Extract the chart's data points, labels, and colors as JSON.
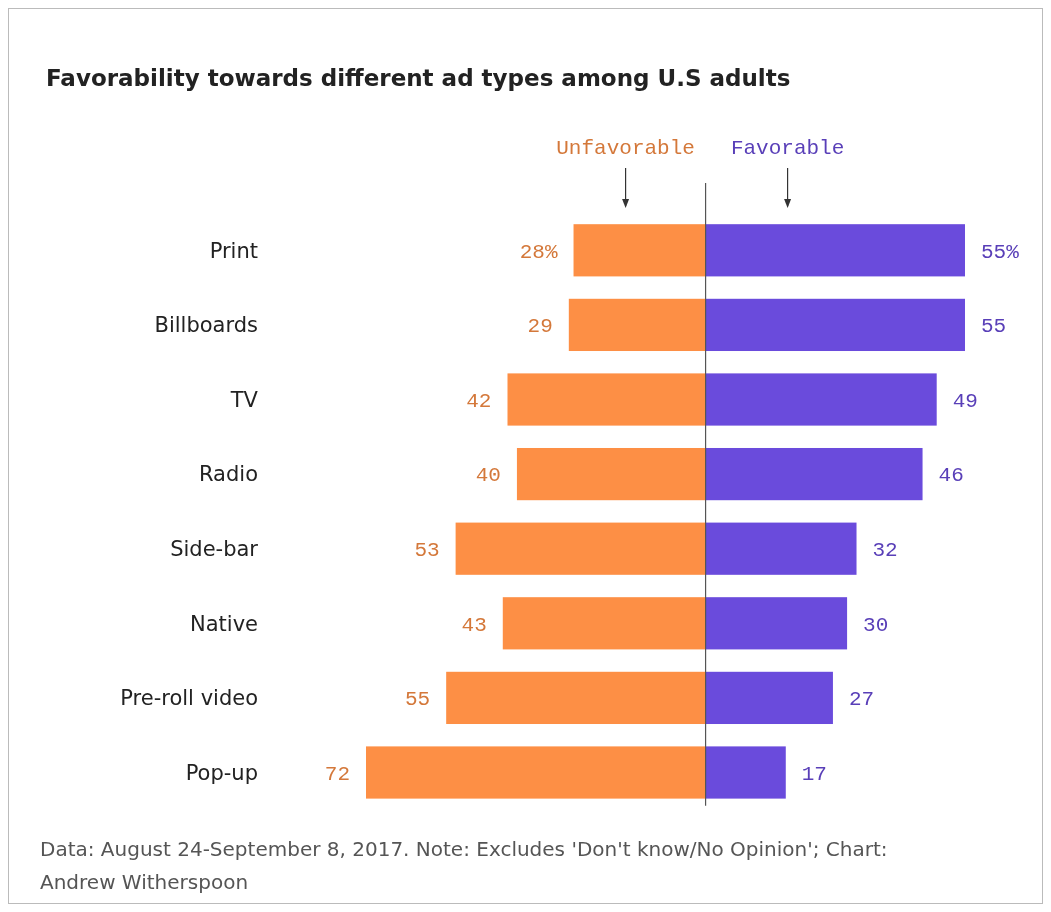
{
  "chart_data": [
    {
      "type": "bar",
      "orientation": "horizontal",
      "title": "Favorability towards different ad types among U.S adults",
      "xlim": [
        72,
        0
      ],
      "tick_labels": "y",
      "categories": [
        "Print",
        "Billboards",
        "TV",
        "Radio",
        "Side-bar",
        "Native",
        "Pre-roll video",
        "Pop-up"
      ],
      "series": [
        {
          "name": "Unfavorable",
          "color": "#fd8f45",
          "values": [
            28,
            29,
            42,
            40,
            53,
            43,
            55,
            72
          ],
          "value_labels": [
            "28%",
            "29",
            "42",
            "40",
            "53",
            "43",
            "55",
            "72"
          ]
        }
      ],
      "annotations": [
        "Data: August 24-September 8, 2017. Note: Excludes 'Don't know/No Opinion'; Chart: Andrew Witherspoon"
      ]
    },
    {
      "type": "bar",
      "orientation": "horizontal",
      "xlim": [
        0,
        55
      ],
      "tick_labels": false,
      "categories": [
        null,
        null,
        null,
        null,
        null,
        null,
        null,
        null
      ],
      "series": [
        {
          "name": "Favorable",
          "color": "#6a4bdc",
          "values": [
            55,
            55,
            49,
            46,
            32,
            30,
            27,
            17
          ],
          "value_labels": [
            "55%",
            "55",
            "49",
            "46",
            "32",
            "30",
            "27",
            "17"
          ]
        }
      ]
    }
  ]
}
